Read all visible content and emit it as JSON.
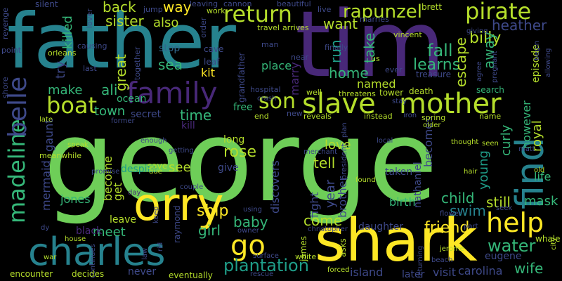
{
  "palette": {
    "yellow": "#fde725",
    "lime": "#b5de2b",
    "green": "#6ece58",
    "mint": "#35b779",
    "teal": "#1f9e89",
    "cyan": "#26828e",
    "blue": "#31688e",
    "indigo": "#3e4989",
    "violet": "#482878",
    "purple": "#440154"
  },
  "words": [
    {
      "text": "george",
      "color": "green"
    },
    {
      "text": "father",
      "color": "cyan"
    },
    {
      "text": "tim",
      "color": "violet"
    },
    {
      "text": "shark",
      "color": "yellow"
    },
    {
      "text": "orry",
      "color": "yellow"
    },
    {
      "text": "charles",
      "color": "cyan"
    },
    {
      "text": "find",
      "color": "cyan"
    },
    {
      "text": "slave",
      "color": "lime"
    },
    {
      "text": "mother",
      "color": "lime"
    },
    {
      "text": "family",
      "color": "violet"
    },
    {
      "text": "return",
      "color": "lime"
    },
    {
      "text": "pirate",
      "color": "lime"
    },
    {
      "text": "rapunzel",
      "color": "lime"
    },
    {
      "text": "help",
      "color": "yellow"
    },
    {
      "text": "son",
      "color": "lime"
    },
    {
      "text": "boat",
      "color": "lime"
    },
    {
      "text": "go",
      "color": "yellow"
    },
    {
      "text": "madeline",
      "color": "mint"
    },
    {
      "text": "belle",
      "color": "indigo"
    },
    {
      "text": "water",
      "color": "mint"
    },
    {
      "text": "plantation",
      "color": "teal"
    },
    {
      "text": "fall",
      "color": "mint"
    },
    {
      "text": "learns",
      "color": "mint"
    },
    {
      "text": "friend",
      "color": "yellow"
    },
    {
      "text": "billy",
      "color": "lime"
    },
    {
      "text": "heather",
      "color": "indigo"
    },
    {
      "text": "want",
      "color": "lime"
    },
    {
      "text": "back",
      "color": "lime"
    },
    {
      "text": "way",
      "color": "yellow"
    },
    {
      "text": "sister",
      "color": "lime"
    },
    {
      "text": "also",
      "color": "lime"
    },
    {
      "text": "sea",
      "color": "mint"
    },
    {
      "text": "home",
      "color": "mint"
    },
    {
      "text": "make",
      "color": "mint"
    },
    {
      "text": "ali",
      "color": "mint"
    },
    {
      "text": "town",
      "color": "mint"
    },
    {
      "text": "time",
      "color": "mint"
    },
    {
      "text": "rose",
      "color": "lime"
    },
    {
      "text": "ship",
      "color": "yellow"
    },
    {
      "text": "girl",
      "color": "mint"
    },
    {
      "text": "baby",
      "color": "mint"
    },
    {
      "text": "come",
      "color": "lime"
    },
    {
      "text": "swim",
      "color": "cyan"
    },
    {
      "text": "mask",
      "color": "mint"
    },
    {
      "text": "still",
      "color": "lime"
    },
    {
      "text": "child",
      "color": "mint"
    },
    {
      "text": "wife",
      "color": "mint"
    },
    {
      "text": "tell",
      "color": "lime"
    },
    {
      "text": "love",
      "color": "lime"
    },
    {
      "text": "see",
      "color": "lime"
    },
    {
      "text": "meet",
      "color": "mint"
    },
    {
      "text": "jones",
      "color": "mint"
    },
    {
      "text": "named",
      "color": "lime"
    },
    {
      "text": "run",
      "color": "teal"
    },
    {
      "text": "take",
      "color": "mint"
    },
    {
      "text": "away",
      "color": "mint"
    },
    {
      "text": "escape",
      "color": "lime"
    },
    {
      "text": "curly",
      "color": "mint"
    },
    {
      "text": "young",
      "color": "teal"
    },
    {
      "text": "royal",
      "color": "lime"
    },
    {
      "text": "however",
      "color": "mint"
    },
    {
      "text": "life",
      "color": "mint"
    },
    {
      "text": "great",
      "color": "lime"
    },
    {
      "text": "try",
      "color": "indigo"
    },
    {
      "text": "killed",
      "color": "mint"
    },
    {
      "text": "ocean",
      "color": "mint"
    },
    {
      "text": "kit",
      "color": "yellow"
    },
    {
      "text": "place",
      "color": "mint"
    },
    {
      "text": "stop",
      "color": "blue"
    },
    {
      "text": "long",
      "color": "lime"
    },
    {
      "text": "become",
      "color": "lime"
    },
    {
      "text": "get",
      "color": "lime"
    },
    {
      "text": "gaunt",
      "color": "indigo"
    },
    {
      "text": "mermaid",
      "color": "indigo"
    },
    {
      "text": "discovers",
      "color": "indigo"
    },
    {
      "text": "year",
      "color": "indigo"
    },
    {
      "text": "fight",
      "color": "indigo"
    },
    {
      "text": "brother",
      "color": "indigo"
    },
    {
      "text": "birth",
      "color": "mint"
    },
    {
      "text": "becomes",
      "color": "indigo"
    },
    {
      "text": "nathaniel",
      "color": "indigo"
    },
    {
      "text": "daughter",
      "color": "indigo"
    },
    {
      "text": "eugene",
      "color": "indigo"
    },
    {
      "text": "carolina",
      "color": "indigo"
    },
    {
      "text": "island",
      "color": "indigo"
    },
    {
      "text": "visit",
      "color": "indigo"
    },
    {
      "text": "later",
      "color": "indigo"
    },
    {
      "text": "taken",
      "color": "indigo"
    },
    {
      "text": "free",
      "color": "mint"
    },
    {
      "text": "marry",
      "color": "violet"
    },
    {
      "text": "kill",
      "color": "violet"
    },
    {
      "text": "secret",
      "color": "indigo"
    },
    {
      "text": "leave",
      "color": "lime"
    },
    {
      "text": "despite",
      "color": "teal"
    },
    {
      "text": "save",
      "color": "lime"
    },
    {
      "text": "give",
      "color": "indigo"
    },
    {
      "text": "raymond",
      "color": "indigo"
    },
    {
      "text": "never",
      "color": "indigo"
    },
    {
      "text": "black",
      "color": "violet"
    },
    {
      "text": "treasure",
      "color": "indigo"
    },
    {
      "text": "episode",
      "color": "lime"
    },
    {
      "text": "search",
      "color": "mint"
    },
    {
      "text": "leaf",
      "color": "indigo"
    },
    {
      "text": "cave",
      "color": "indigo"
    },
    {
      "text": "silent",
      "color": "indigo"
    },
    {
      "text": "revenge",
      "color": "indigo"
    },
    {
      "text": "point",
      "color": "indigo"
    },
    {
      "text": "shore",
      "color": "indigo"
    },
    {
      "text": "orleans",
      "color": "lime"
    },
    {
      "text": "last",
      "color": "indigo"
    },
    {
      "text": "causing",
      "color": "indigo"
    },
    {
      "text": "together",
      "color": "indigo"
    },
    {
      "text": "lover",
      "color": "indigo"
    },
    {
      "text": "jump",
      "color": "indigo"
    },
    {
      "text": "leaving",
      "color": "indigo"
    },
    {
      "text": "work",
      "color": "lime"
    },
    {
      "text": "order",
      "color": "indigo"
    },
    {
      "text": "beautiful",
      "color": "indigo"
    },
    {
      "text": "live",
      "color": "indigo"
    },
    {
      "text": "brett",
      "color": "lime"
    },
    {
      "text": "travel",
      "color": "lime"
    },
    {
      "text": "arrives",
      "color": "lime"
    },
    {
      "text": "marries",
      "color": "indigo"
    },
    {
      "text": "vincent",
      "color": "lime"
    },
    {
      "text": "giving",
      "color": "indigo"
    },
    {
      "text": "man",
      "color": "indigo"
    },
    {
      "text": "near",
      "color": "indigo"
    },
    {
      "text": "finally",
      "color": "indigo"
    },
    {
      "text": "grandfather",
      "color": "indigo"
    },
    {
      "text": "president",
      "color": "indigo"
    },
    {
      "text": "us",
      "color": "lime"
    },
    {
      "text": "ever",
      "color": "indigo"
    },
    {
      "text": "agree",
      "color": "indigo"
    },
    {
      "text": "begin",
      "color": "indigo"
    },
    {
      "text": "allowing",
      "color": "indigo"
    },
    {
      "text": "seen",
      "color": "lime"
    },
    {
      "text": "pregnant",
      "color": "indigo"
    },
    {
      "text": "hospital",
      "color": "indigo"
    },
    {
      "text": "crash",
      "color": "indigo"
    },
    {
      "text": "well",
      "color": "lime"
    },
    {
      "text": "threatens",
      "color": "lime"
    },
    {
      "text": "tower",
      "color": "lime"
    },
    {
      "text": "death",
      "color": "lime"
    },
    {
      "text": "end",
      "color": "lime"
    },
    {
      "text": "new",
      "color": "indigo"
    },
    {
      "text": "reveals",
      "color": "lime"
    },
    {
      "text": "instead",
      "color": "lime"
    },
    {
      "text": "iron",
      "color": "indigo"
    },
    {
      "text": "stay",
      "color": "indigo"
    },
    {
      "text": "spring",
      "color": "lime"
    },
    {
      "text": "older",
      "color": "lime"
    },
    {
      "text": "name",
      "color": "lime"
    },
    {
      "text": "plan",
      "color": "indigo"
    },
    {
      "text": "late",
      "color": "lime"
    },
    {
      "text": "former",
      "color": "indigo"
    },
    {
      "text": "speak",
      "color": "lime"
    },
    {
      "text": "meanwhile",
      "color": "lime"
    },
    {
      "text": "enough",
      "color": "indigo"
    },
    {
      "text": "getting",
      "color": "indigo"
    },
    {
      "text": "merchant",
      "color": "indigo"
    },
    {
      "text": "local",
      "color": "indigo"
    },
    {
      "text": "thought",
      "color": "lime"
    },
    {
      "text": "matt",
      "color": "indigo"
    },
    {
      "text": "promise",
      "color": "indigo"
    },
    {
      "text": "due",
      "color": "lime"
    },
    {
      "text": "found",
      "color": "lime"
    },
    {
      "text": "hair",
      "color": "lime"
    },
    {
      "text": "old",
      "color": "lime"
    },
    {
      "text": "day",
      "color": "violet"
    },
    {
      "text": "couple",
      "color": "indigo"
    },
    {
      "text": "keep",
      "color": "indigo"
    },
    {
      "text": "flower",
      "color": "indigo"
    },
    {
      "text": "seek",
      "color": "indigo"
    },
    {
      "text": "using",
      "color": "indigo"
    },
    {
      "text": "christopher",
      "color": "indigo"
    },
    {
      "text": "part",
      "color": "indigo"
    },
    {
      "text": "whale",
      "color": "lime"
    },
    {
      "text": "dy",
      "color": "indigo"
    },
    {
      "text": "owner",
      "color": "indigo"
    },
    {
      "text": "james",
      "color": "lime"
    },
    {
      "text": "asks",
      "color": "lime"
    },
    {
      "text": "jerome",
      "color": "lime"
    },
    {
      "text": "city",
      "color": "lime"
    },
    {
      "text": "house",
      "color": "lime"
    },
    {
      "text": "law",
      "color": "indigo"
    },
    {
      "text": "rid",
      "color": "indigo"
    },
    {
      "text": "surface",
      "color": "indigo"
    },
    {
      "text": "white",
      "color": "lime"
    },
    {
      "text": "beach",
      "color": "indigo"
    },
    {
      "text": "war",
      "color": "lime"
    },
    {
      "text": "continues",
      "color": "indigo"
    },
    {
      "text": "returning",
      "color": "indigo"
    },
    {
      "text": "encounter",
      "color": "lime"
    },
    {
      "text": "decides",
      "color": "lime"
    },
    {
      "text": "eventually",
      "color": "lime"
    },
    {
      "text": "rescue",
      "color": "indigo"
    },
    {
      "text": "forced",
      "color": "lime"
    },
    {
      "text": "cannon",
      "color": "indigo"
    }
  ]
}
